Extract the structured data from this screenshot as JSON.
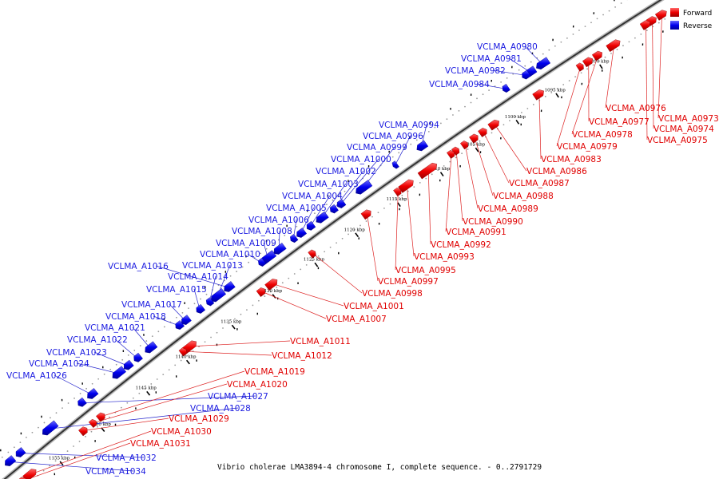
{
  "caption": "Vibrio cholerae LMA3894-4 chromosome I, complete sequence. - 0..2791729",
  "legend": {
    "forward_label": "Forward",
    "reverse_label": "Reverse",
    "forward_color": "#ff0000",
    "reverse_color": "#0000ff"
  },
  "ticks": [
    "1090 kbp",
    "1095 kbp",
    "1100 kbp",
    "1105 kbp",
    "1110 kbp",
    "1115 kbp",
    "1120 kbp",
    "1125 kbp",
    "1130 kbp",
    "1135 kbp",
    "1140 kbp",
    "1145 kbp",
    "1150 kbp",
    "1155 kbp"
  ],
  "reverse_genes": [
    "VCLMA_A0980",
    "VCLMA_A0981",
    "VCLMA_A0982",
    "VCLMA_A0984",
    "VCLMA_A0994",
    "VCLMA_A0996",
    "VCLMA_A0999",
    "VCLMA_A1000",
    "VCLMA_A1002",
    "VCLMA_A1003",
    "VCLMA_A1004",
    "VCLMA_A1005",
    "VCLMA_A1006",
    "VCLMA_A1008",
    "VCLMA_A1009",
    "VCLMA_A1010",
    "VCLMA_A1016",
    "VCLMA_A1013",
    "VCLMA_A1014",
    "VCLMA_A1015",
    "VCLMA_A1017",
    "VCLMA_A1018",
    "VCLMA_A1021",
    "VCLMA_A1022",
    "VCLMA_A1023",
    "VCLMA_A1024",
    "VCLMA_A1026",
    "VCLMA_A1027",
    "VCLMA_A1028",
    "VCLMA_A1032",
    "VCLMA_A1034"
  ],
  "forward_genes": [
    "VCLMA_A0976",
    "VCLMA_A0973",
    "VCLMA_A0977",
    "VCLMA_A0974",
    "VCLMA_A0978",
    "VCLMA_A0975",
    "VCLMA_A0979",
    "VCLMA_A0983",
    "VCLMA_A0986",
    "VCLMA_A0987",
    "VCLMA_A0988",
    "VCLMA_A0989",
    "VCLMA_A0990",
    "VCLMA_A0991",
    "VCLMA_A0992",
    "VCLMA_A0993",
    "VCLMA_A0995",
    "VCLMA_A0997",
    "VCLMA_A0998",
    "VCLMA_A1001",
    "VCLMA_A1007",
    "VCLMA_A1011",
    "VCLMA_A1012",
    "VCLMA_A1019",
    "VCLMA_A1020",
    "VCLMA_A1029",
    "VCLMA_A1030",
    "VCLMA_A1031"
  ]
}
